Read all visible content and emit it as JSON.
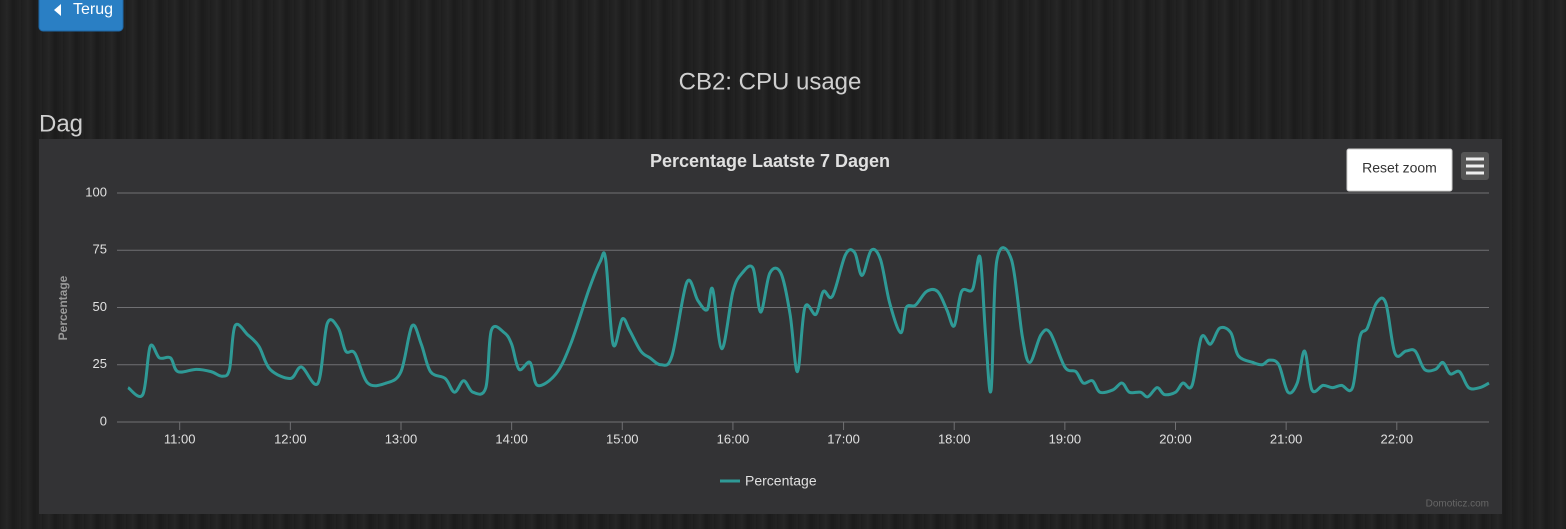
{
  "page": {
    "back_button": "Terug",
    "heading": "CB2: CPU usage",
    "section": "Dag",
    "reset_zoom": "Reset zoom",
    "credits": "Domoticz.com"
  },
  "chart_data": {
    "type": "line",
    "title": "Percentage Laatste 7 Dagen",
    "ylabel": "Percentage",
    "x": [
      632,
      640,
      644,
      649,
      655,
      659,
      669,
      677,
      683,
      687,
      690,
      697,
      703,
      709,
      720,
      726,
      735,
      740,
      746,
      750,
      755,
      762,
      772,
      780,
      786,
      791,
      796,
      804,
      809,
      814,
      819,
      826,
      829,
      836,
      840,
      844,
      850,
      854,
      864,
      872,
      882,
      888,
      891,
      895,
      900,
      904,
      910,
      915,
      921,
      927,
      935,
      941,
      946,
      949,
      954,
      960,
      965,
      971,
      975,
      980,
      986,
      991,
      995,
      999,
      1005,
      1009,
      1014,
      1021,
      1026,
      1030,
      1035,
      1040,
      1045,
      1051,
      1054,
      1059,
      1065,
      1071,
      1076,
      1080,
      1084,
      1090,
      1094,
      1097,
      1100,
      1103,
      1111,
      1117,
      1121,
      1127,
      1132,
      1140,
      1146,
      1150,
      1155,
      1159,
      1166,
      1171,
      1175,
      1181,
      1185,
      1190,
      1194,
      1200,
      1204,
      1209,
      1214,
      1219,
      1224,
      1230,
      1234,
      1242,
      1247,
      1251,
      1256,
      1261,
      1266,
      1270,
      1274,
      1280,
      1285,
      1290,
      1296,
      1300,
      1304,
      1309,
      1314,
      1319,
      1325,
      1330,
      1335,
      1341,
      1345,
      1349,
      1354,
      1359,
      1365,
      1370
    ],
    "series": [
      {
        "name": "Percentage",
        "color": "#2f9a96",
        "values": [
          15,
          12,
          33,
          28,
          28,
          22,
          23,
          22,
          20,
          23,
          42,
          38,
          33,
          23,
          19,
          24,
          17,
          43,
          41,
          31,
          30,
          17,
          17,
          22,
          42,
          34,
          22,
          19,
          13,
          18,
          13,
          15,
          40,
          39,
          34,
          23,
          26,
          16,
          21,
          34,
          58,
          70,
          71,
          34,
          45,
          40,
          31,
          28,
          25,
          29,
          61,
          53,
          49,
          58,
          32,
          57,
          65,
          67,
          48,
          65,
          65,
          47,
          22,
          50,
          47,
          57,
          55,
          73,
          74,
          64,
          75,
          71,
          52,
          39,
          50,
          51,
          57,
          57,
          49,
          42,
          57,
          58,
          72,
          38,
          14,
          70,
          71,
          37,
          26,
          38,
          39,
          24,
          22,
          17,
          18,
          13,
          14,
          17,
          13,
          13,
          11,
          15,
          12,
          13,
          17,
          16,
          37,
          34,
          41,
          39,
          29,
          26,
          25,
          27,
          25,
          13,
          17,
          31,
          14,
          16,
          15,
          16,
          15,
          37,
          41,
          52,
          52,
          30,
          31,
          31,
          23,
          23,
          26,
          21,
          22,
          15,
          15,
          17
        ]
      }
    ],
    "xlim": [
      626,
      1370
    ],
    "xticks": [
      {
        "value": 660,
        "label": "11:00"
      },
      {
        "value": 720,
        "label": "12:00"
      },
      {
        "value": 780,
        "label": "13:00"
      },
      {
        "value": 840,
        "label": "14:00"
      },
      {
        "value": 900,
        "label": "15:00"
      },
      {
        "value": 960,
        "label": "16:00"
      },
      {
        "value": 1020,
        "label": "17:00"
      },
      {
        "value": 1080,
        "label": "18:00"
      },
      {
        "value": 1140,
        "label": "19:00"
      },
      {
        "value": 1200,
        "label": "20:00"
      },
      {
        "value": 1260,
        "label": "21:00"
      },
      {
        "value": 1320,
        "label": "22:00"
      }
    ],
    "ylim": [
      0,
      100
    ],
    "yticks": [
      0,
      25,
      50,
      75,
      100
    ],
    "grid": true,
    "legend": "bottom"
  }
}
